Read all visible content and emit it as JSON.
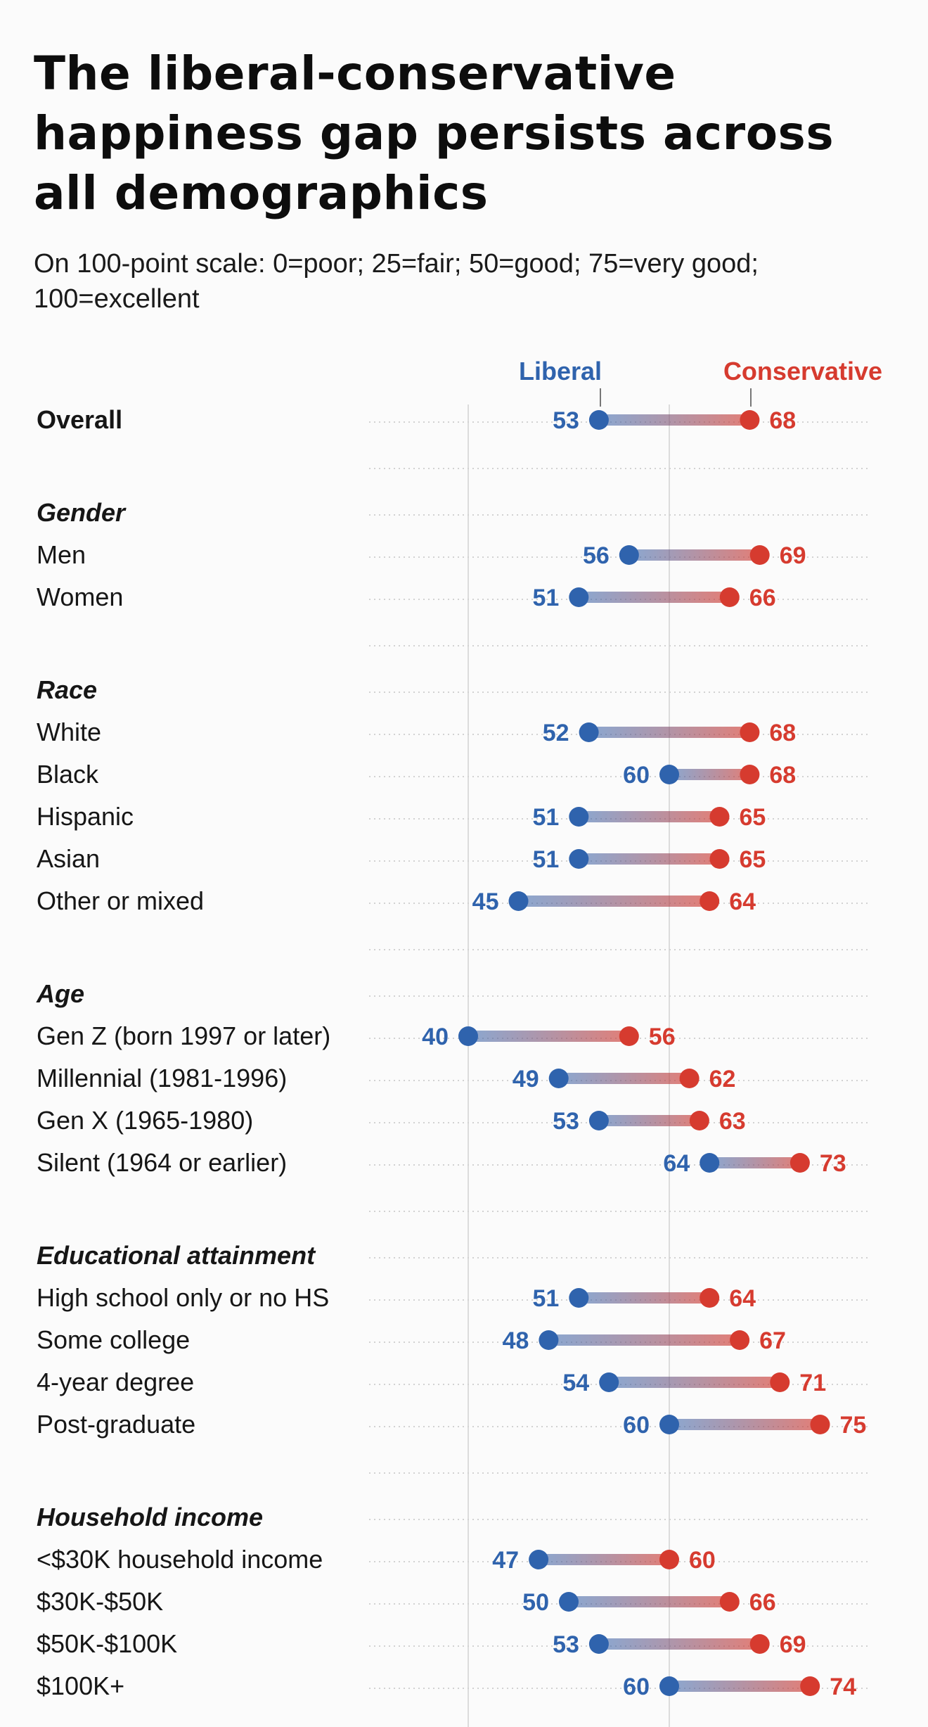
{
  "title": "The liberal-conservative happiness gap persists across all demographics",
  "subtitle": "On 100-point scale: 0=poor; 25=fair; 50=good; 75=very good; 100=excellent",
  "colors": {
    "liberal": "#2f63ad",
    "conservative": "#d63b2f",
    "gridline": "#dcdcdc",
    "dotted_row": "#d2d2d2"
  },
  "chart_data": {
    "type": "dumbbell",
    "series": [
      {
        "name": "Liberal",
        "color": "#2f63ad"
      },
      {
        "name": "Conservative",
        "color": "#d63b2f"
      }
    ],
    "x_range": [
      40,
      80
    ],
    "reference_lines": [
      40,
      60
    ],
    "rows": [
      {
        "kind": "row",
        "label": "Overall",
        "bold": true,
        "liberal": 53,
        "conservative": 68
      },
      {
        "kind": "header",
        "label": "Gender"
      },
      {
        "kind": "row",
        "label": "Men",
        "liberal": 56,
        "conservative": 69
      },
      {
        "kind": "row",
        "label": "Women",
        "liberal": 51,
        "conservative": 66
      },
      {
        "kind": "header",
        "label": "Race"
      },
      {
        "kind": "row",
        "label": "White",
        "liberal": 52,
        "conservative": 68
      },
      {
        "kind": "row",
        "label": "Black",
        "liberal": 60,
        "conservative": 68
      },
      {
        "kind": "row",
        "label": "Hispanic",
        "liberal": 51,
        "conservative": 65
      },
      {
        "kind": "row",
        "label": "Asian",
        "liberal": 51,
        "conservative": 65
      },
      {
        "kind": "row",
        "label": "Other or mixed",
        "liberal": 45,
        "conservative": 64
      },
      {
        "kind": "header",
        "label": "Age"
      },
      {
        "kind": "row",
        "label": "Gen Z (born 1997 or later)",
        "liberal": 40,
        "conservative": 56
      },
      {
        "kind": "row",
        "label": "Millennial (1981-1996)",
        "liberal": 49,
        "conservative": 62
      },
      {
        "kind": "row",
        "label": "Gen X (1965-1980)",
        "liberal": 53,
        "conservative": 63
      },
      {
        "kind": "row",
        "label": "Silent (1964 or earlier)",
        "liberal": 64,
        "conservative": 73
      },
      {
        "kind": "header",
        "label": "Educational attainment"
      },
      {
        "kind": "row",
        "label": "High school only or no HS",
        "liberal": 51,
        "conservative": 64
      },
      {
        "kind": "row",
        "label": "Some college",
        "liberal": 48,
        "conservative": 67
      },
      {
        "kind": "row",
        "label": "4-year degree",
        "liberal": 54,
        "conservative": 71
      },
      {
        "kind": "row",
        "label": "Post-graduate",
        "liberal": 60,
        "conservative": 75
      },
      {
        "kind": "header",
        "label": "Household income"
      },
      {
        "kind": "row",
        "label": "<$30K household income",
        "liberal": 47,
        "conservative": 60
      },
      {
        "kind": "row",
        "label": "$30K-$50K",
        "liberal": 50,
        "conservative": 66
      },
      {
        "kind": "row",
        "label": "$50K-$100K",
        "liberal": 53,
        "conservative": 69
      },
      {
        "kind": "row",
        "label": "$100K+",
        "liberal": 60,
        "conservative": 74
      }
    ]
  }
}
